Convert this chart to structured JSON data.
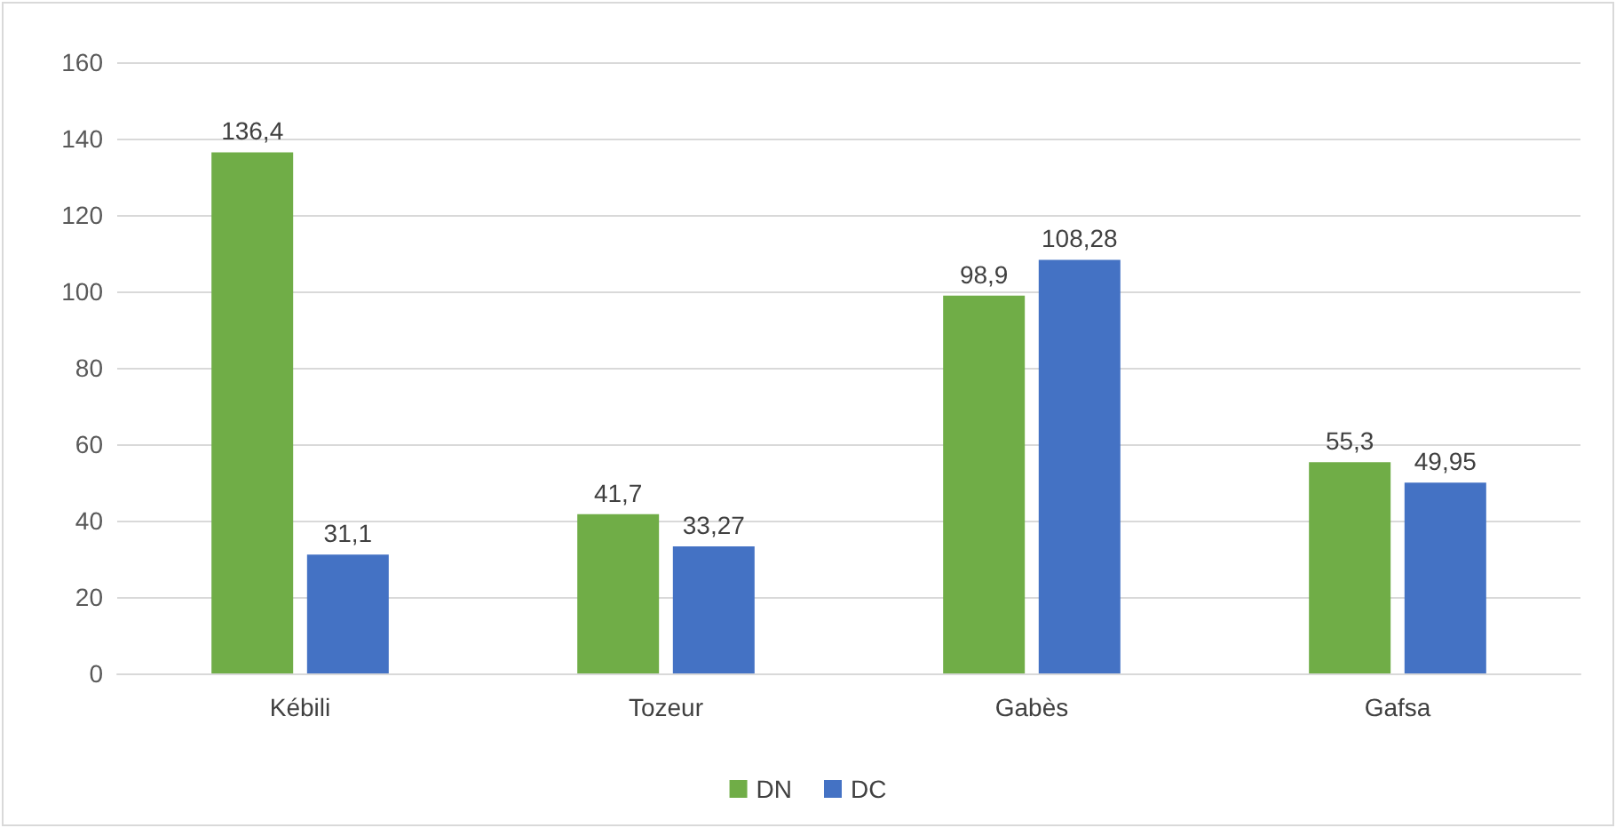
{
  "chart_data": {
    "type": "bar",
    "categories": [
      "Kébili",
      "Tozeur",
      "Gabès",
      "Gafsa"
    ],
    "series": [
      {
        "name": "DN",
        "color": "#70ad47",
        "values": [
          136.4,
          41.7,
          98.9,
          55.3
        ],
        "value_labels": [
          "136,4",
          "41,7",
          "98,9",
          "55,3"
        ]
      },
      {
        "name": "DC",
        "color": "#4472c4",
        "values": [
          31.1,
          33.27,
          108.28,
          49.95
        ],
        "value_labels": [
          "31,1",
          "33,27",
          "108,28",
          "49,95"
        ]
      }
    ],
    "ylim": [
      0,
      160
    ],
    "yticks": [
      0,
      20,
      40,
      60,
      80,
      100,
      120,
      140,
      160
    ],
    "grid": "y",
    "legend": "bottom"
  }
}
